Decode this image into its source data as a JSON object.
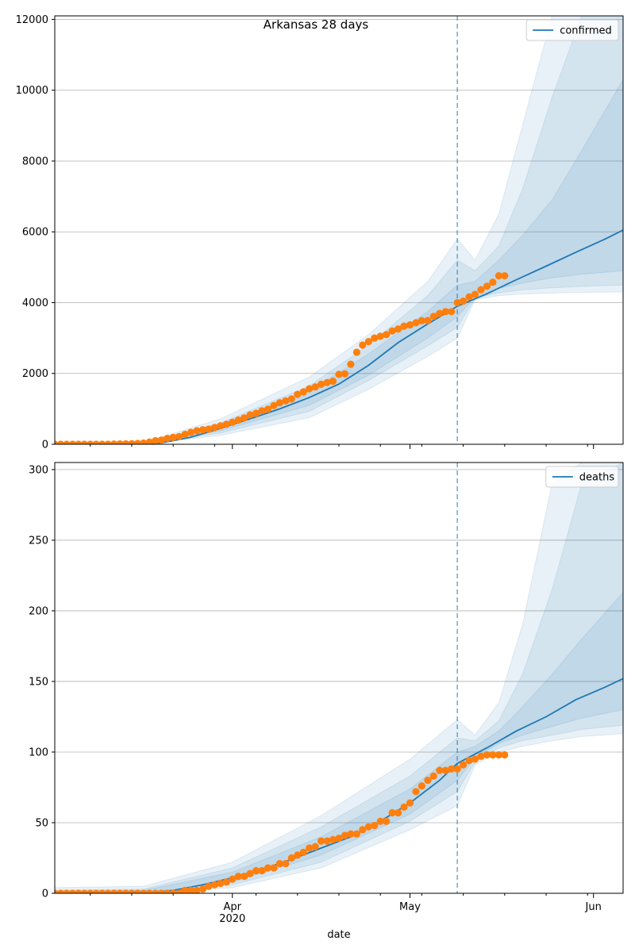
{
  "chart_data": [
    {
      "type": "line",
      "title": "Arkansas 28 days",
      "xlabel": "",
      "ylabel": "",
      "ylim": [
        0,
        12100
      ],
      "yticks": [
        0,
        2000,
        4000,
        6000,
        8000,
        10000,
        12000
      ],
      "x_range": [
        "2020-03-02",
        "2020-06-06"
      ],
      "forecast_start": "2020-05-09",
      "grid": "horizontal",
      "legend_position": "upper right",
      "legend_entries": [
        "confirmed"
      ],
      "colors": {
        "median": "#1f77b4",
        "observed": "#ff7f0e",
        "band": "#1f77b4"
      },
      "median": {
        "x": [
          "2020-03-15",
          "2020-03-20",
          "2020-03-25",
          "2020-03-30",
          "2020-04-04",
          "2020-04-09",
          "2020-04-14",
          "2020-04-19",
          "2020-04-24",
          "2020-04-29",
          "2020-05-04",
          "2020-05-09",
          "2020-05-14",
          "2020-05-19",
          "2020-05-24",
          "2020-05-29",
          "2020-06-03",
          "2020-06-06"
        ],
        "values": [
          0,
          40,
          200,
          450,
          720,
          1000,
          1320,
          1700,
          2230,
          2870,
          3400,
          3900,
          4250,
          4650,
          5030,
          5420,
          5800,
          6050
        ]
      },
      "bands": [
        {
          "x": [
            "2020-03-17",
            "2020-03-30",
            "2020-04-14",
            "2020-04-24",
            "2020-05-04",
            "2020-05-09",
            "2020-05-12",
            "2020-05-16",
            "2020-05-20",
            "2020-05-25",
            "2020-05-30",
            "2020-06-06"
          ],
          "upper": [
            50,
            720,
            1900,
            3100,
            4600,
            5800,
            5200,
            6500,
            9000,
            12100,
            12100,
            12100
          ],
          "lower": [
            0,
            250,
            750,
            1550,
            2480,
            3000,
            4080,
            4200,
            4240,
            4270,
            4290,
            4300
          ]
        },
        {
          "x": [
            "2020-03-17",
            "2020-03-30",
            "2020-04-14",
            "2020-04-24",
            "2020-05-04",
            "2020-05-09",
            "2020-05-12",
            "2020-05-16",
            "2020-05-20",
            "2020-05-25",
            "2020-05-30",
            "2020-06-06"
          ],
          "upper": [
            30,
            600,
            1650,
            2800,
            4200,
            5200,
            4900,
            5600,
            7200,
            9800,
            12100,
            12100
          ],
          "lower": [
            0,
            320,
            930,
            1800,
            2780,
            3300,
            4120,
            4280,
            4360,
            4420,
            4460,
            4500
          ]
        },
        {
          "x": [
            "2020-03-17",
            "2020-03-30",
            "2020-04-14",
            "2020-04-24",
            "2020-05-04",
            "2020-05-09",
            "2020-05-12",
            "2020-05-16",
            "2020-05-20",
            "2020-05-25",
            "2020-05-30",
            "2020-06-06"
          ],
          "upper": [
            15,
            520,
            1500,
            2550,
            3750,
            4500,
            4600,
            5200,
            5900,
            6900,
            8300,
            10300
          ],
          "lower": [
            0,
            380,
            1100,
            1950,
            3000,
            3600,
            4160,
            4400,
            4550,
            4700,
            4800,
            4900
          ]
        }
      ],
      "observed": {
        "x": [
          "2020-03-02",
          "2020-03-03",
          "2020-03-04",
          "2020-03-05",
          "2020-03-06",
          "2020-03-07",
          "2020-03-08",
          "2020-03-09",
          "2020-03-10",
          "2020-03-11",
          "2020-03-12",
          "2020-03-13",
          "2020-03-14",
          "2020-03-15",
          "2020-03-16",
          "2020-03-17",
          "2020-03-18",
          "2020-03-19",
          "2020-03-20",
          "2020-03-21",
          "2020-03-22",
          "2020-03-23",
          "2020-03-24",
          "2020-03-25",
          "2020-03-26",
          "2020-03-27",
          "2020-03-28",
          "2020-03-29",
          "2020-03-30",
          "2020-03-31",
          "2020-04-01",
          "2020-04-02",
          "2020-04-03",
          "2020-04-04",
          "2020-04-05",
          "2020-04-06",
          "2020-04-07",
          "2020-04-08",
          "2020-04-09",
          "2020-04-10",
          "2020-04-11",
          "2020-04-12",
          "2020-04-13",
          "2020-04-14",
          "2020-04-15",
          "2020-04-16",
          "2020-04-17",
          "2020-04-18",
          "2020-04-19",
          "2020-04-20",
          "2020-04-21",
          "2020-04-22",
          "2020-04-23",
          "2020-04-24",
          "2020-04-25",
          "2020-04-26",
          "2020-04-27",
          "2020-04-28",
          "2020-04-29",
          "2020-04-30",
          "2020-05-01",
          "2020-05-02",
          "2020-05-03",
          "2020-05-04",
          "2020-05-05",
          "2020-05-06",
          "2020-05-07",
          "2020-05-08",
          "2020-05-09",
          "2020-05-10",
          "2020-05-11",
          "2020-05-12",
          "2020-05-13",
          "2020-05-14",
          "2020-05-15",
          "2020-05-16",
          "2020-05-17"
        ],
        "values": [
          0,
          0,
          0,
          0,
          0,
          0,
          0,
          0,
          0,
          0,
          6,
          9,
          12,
          16,
          22,
          33,
          62,
          100,
          118,
          165,
          192,
          218,
          280,
          335,
          381,
          409,
          426,
          473,
          523,
          564,
          624,
          683,
          743,
          830,
          875,
          946,
          993,
          1094,
          1171,
          1226,
          1280,
          1410,
          1480,
          1569,
          1620,
          1695,
          1744,
          1781,
          1973,
          1990,
          2262,
          2600,
          2800,
          2900,
          3000,
          3050,
          3100,
          3200,
          3255,
          3337,
          3372,
          3431,
          3491,
          3496,
          3611,
          3694,
          3747,
          3747,
          4000,
          4043,
          4164,
          4236,
          4366,
          4463,
          4578,
          4759,
          4759
        ]
      }
    },
    {
      "type": "line",
      "title": "",
      "xlabel": "date",
      "ylabel": "",
      "ylim": [
        0,
        305
      ],
      "yticks": [
        0,
        50,
        100,
        150,
        200,
        250,
        300
      ],
      "x_range": [
        "2020-03-02",
        "2020-06-06"
      ],
      "x_tick_labels": [
        {
          "date": "2020-04-01",
          "label": "Apr",
          "sublabel": "2020"
        },
        {
          "date": "2020-05-01",
          "label": "May",
          "sublabel": ""
        },
        {
          "date": "2020-06-01",
          "label": "Jun",
          "sublabel": ""
        }
      ],
      "forecast_start": "2020-05-09",
      "grid": "horizontal",
      "legend_position": "upper right",
      "legend_entries": [
        "deaths"
      ],
      "colors": {
        "median": "#1f77b4",
        "observed": "#ff7f0e",
        "band": "#1f77b4"
      },
      "median": {
        "x": [
          "2020-03-17",
          "2020-03-22",
          "2020-03-27",
          "2020-04-01",
          "2020-04-06",
          "2020-04-11",
          "2020-04-16",
          "2020-04-21",
          "2020-04-26",
          "2020-05-01",
          "2020-05-06",
          "2020-05-09",
          "2020-05-14",
          "2020-05-19",
          "2020-05-24",
          "2020-05-29",
          "2020-06-03",
          "2020-06-06"
        ],
        "values": [
          0.5,
          2,
          6,
          11,
          17,
          24,
          32,
          40,
          51,
          64,
          80,
          92,
          103,
          115,
          125,
          137,
          146,
          152
        ]
      },
      "bands": [
        {
          "x": [
            "2020-03-02",
            "2020-03-17",
            "2020-04-01",
            "2020-04-16",
            "2020-05-01",
            "2020-05-09",
            "2020-05-12",
            "2020-05-16",
            "2020-05-20",
            "2020-05-25",
            "2020-05-30",
            "2020-06-06"
          ],
          "upper": [
            4,
            5,
            22,
            55,
            95,
            123,
            112,
            135,
            190,
            290,
            305,
            305
          ],
          "lower": [
            0,
            0,
            4,
            18,
            45,
            62,
            91,
            100,
            104,
            108,
            111,
            113
          ]
        },
        {
          "x": [
            "2020-03-02",
            "2020-03-17",
            "2020-04-01",
            "2020-04-16",
            "2020-05-01",
            "2020-05-09",
            "2020-05-12",
            "2020-05-16",
            "2020-05-20",
            "2020-05-25",
            "2020-05-30",
            "2020-06-06"
          ],
          "upper": [
            2,
            3,
            18,
            47,
            83,
            110,
            108,
            122,
            155,
            215,
            290,
            305
          ],
          "lower": [
            0,
            0,
            6,
            22,
            51,
            72,
            93,
            103,
            108,
            112,
            116,
            119
          ]
        },
        {
          "x": [
            "2020-03-02",
            "2020-03-17",
            "2020-04-01",
            "2020-04-16",
            "2020-05-01",
            "2020-05-09",
            "2020-05-12",
            "2020-05-16",
            "2020-05-20",
            "2020-05-25",
            "2020-05-30",
            "2020-06-06"
          ],
          "upper": [
            1,
            2,
            15,
            40,
            74,
            100,
            104,
            115,
            132,
            155,
            180,
            213
          ],
          "lower": [
            0,
            0,
            8,
            27,
            56,
            80,
            96,
            106,
            112,
            118,
            124,
            130
          ]
        }
      ],
      "observed": {
        "x": [
          "2020-03-02",
          "2020-03-03",
          "2020-03-04",
          "2020-03-05",
          "2020-03-06",
          "2020-03-07",
          "2020-03-08",
          "2020-03-09",
          "2020-03-10",
          "2020-03-11",
          "2020-03-12",
          "2020-03-13",
          "2020-03-14",
          "2020-03-15",
          "2020-03-16",
          "2020-03-17",
          "2020-03-18",
          "2020-03-19",
          "2020-03-20",
          "2020-03-21",
          "2020-03-22",
          "2020-03-23",
          "2020-03-24",
          "2020-03-25",
          "2020-03-26",
          "2020-03-27",
          "2020-03-28",
          "2020-03-29",
          "2020-03-30",
          "2020-03-31",
          "2020-04-01",
          "2020-04-02",
          "2020-04-03",
          "2020-04-04",
          "2020-04-05",
          "2020-04-06",
          "2020-04-07",
          "2020-04-08",
          "2020-04-09",
          "2020-04-10",
          "2020-04-11",
          "2020-04-12",
          "2020-04-13",
          "2020-04-14",
          "2020-04-15",
          "2020-04-16",
          "2020-04-17",
          "2020-04-18",
          "2020-04-19",
          "2020-04-20",
          "2020-04-21",
          "2020-04-22",
          "2020-04-23",
          "2020-04-24",
          "2020-04-25",
          "2020-04-26",
          "2020-04-27",
          "2020-04-28",
          "2020-04-29",
          "2020-04-30",
          "2020-05-01",
          "2020-05-02",
          "2020-05-03",
          "2020-05-04",
          "2020-05-05",
          "2020-05-06",
          "2020-05-07",
          "2020-05-08",
          "2020-05-09",
          "2020-05-10",
          "2020-05-11",
          "2020-05-12",
          "2020-05-13",
          "2020-05-14",
          "2020-05-15",
          "2020-05-16",
          "2020-05-17"
        ],
        "values": [
          0,
          0,
          0,
          0,
          0,
          0,
          0,
          0,
          0,
          0,
          0,
          0,
          0,
          0,
          0,
          0,
          0,
          0,
          0,
          0,
          0,
          0,
          2,
          2,
          2,
          3,
          5,
          6,
          7,
          8,
          10,
          12,
          12,
          14,
          16,
          16,
          18,
          18,
          21,
          21,
          25,
          27,
          29,
          32,
          33,
          37,
          37,
          38,
          39,
          41,
          42,
          42,
          45,
          47,
          48,
          51,
          51,
          57,
          57,
          61,
          64,
          72,
          76,
          80,
          83,
          87,
          87,
          88,
          88,
          91,
          94,
          95,
          97,
          98,
          98,
          98,
          98
        ]
      }
    }
  ]
}
